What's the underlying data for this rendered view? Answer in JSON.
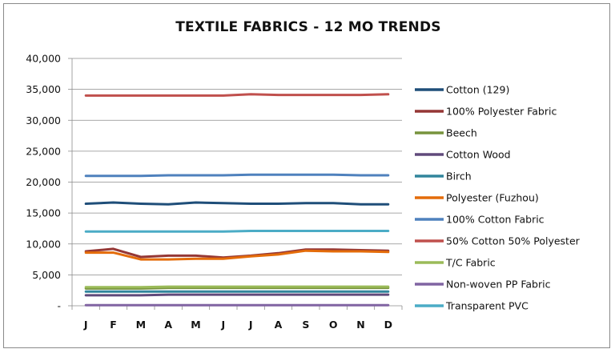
{
  "chart_data": {
    "type": "line",
    "title": "TEXTILE FABRICS - 12 MO TRENDS",
    "xlabel": "",
    "ylabel": "",
    "categories": [
      "J",
      "F",
      "M",
      "A",
      "M",
      "J",
      "J",
      "A",
      "S",
      "O",
      "N",
      "D"
    ],
    "ylim": [
      0,
      40000
    ],
    "yticks": [
      0,
      5000,
      10000,
      15000,
      20000,
      25000,
      30000,
      35000,
      40000
    ],
    "ytick_labels": [
      "-",
      "5,000",
      "10,000",
      "15,000",
      "20,000",
      "25,000",
      "30,000",
      "35,000",
      "40,000"
    ],
    "grid": true,
    "legend_position": "right",
    "series": [
      {
        "name": "Cotton (129)",
        "color": "#1f4e79",
        "values": [
          16500,
          16700,
          16500,
          16400,
          16700,
          16600,
          16500,
          16500,
          16600,
          16600,
          16400,
          16400
        ]
      },
      {
        "name": "100% Polyester Fabric",
        "color": "#953735",
        "values": [
          8800,
          9200,
          7900,
          8100,
          8100,
          7800,
          8100,
          8500,
          9100,
          9100,
          9000,
          8900
        ]
      },
      {
        "name": "Beech",
        "color": "#77933c",
        "values": [
          2800,
          2800,
          2800,
          2900,
          2900,
          2900,
          2900,
          2900,
          2900,
          2900,
          2900,
          2900
        ]
      },
      {
        "name": "Cotton Wood",
        "color": "#604a7b",
        "values": [
          1700,
          1700,
          1700,
          1800,
          1800,
          1800,
          1800,
          1800,
          1800,
          1800,
          1800,
          1800
        ]
      },
      {
        "name": "Birch",
        "color": "#31859c",
        "values": [
          2300,
          2300,
          2300,
          2300,
          2300,
          2300,
          2300,
          2300,
          2300,
          2300,
          2300,
          2300
        ]
      },
      {
        "name": "Polyester (Fuzhou)",
        "color": "#e46c0a",
        "values": [
          8600,
          8600,
          7500,
          7500,
          7600,
          7600,
          8000,
          8300,
          8900,
          8800,
          8800,
          8700
        ]
      },
      {
        "name": "100% Cotton Fabric",
        "color": "#4f81bd",
        "values": [
          21000,
          21000,
          21000,
          21100,
          21100,
          21100,
          21200,
          21200,
          21200,
          21200,
          21100,
          21100
        ]
      },
      {
        "name": "50% Cotton 50% Polyester",
        "color": "#c0504d",
        "values": [
          34000,
          34000,
          34000,
          34000,
          34000,
          34000,
          34200,
          34100,
          34100,
          34100,
          34100,
          34200
        ]
      },
      {
        "name": "T/C Fabric",
        "color": "#9bbb59",
        "values": [
          3000,
          3000,
          3000,
          3100,
          3100,
          3100,
          3100,
          3100,
          3100,
          3100,
          3100,
          3100
        ]
      },
      {
        "name": "Non-woven PP Fabric",
        "color": "#8064a2",
        "values": [
          100,
          100,
          100,
          100,
          100,
          100,
          100,
          100,
          100,
          100,
          100,
          100
        ]
      },
      {
        "name": "Transparent PVC",
        "color": "#4bacc6",
        "values": [
          12000,
          12000,
          12000,
          12000,
          12000,
          12000,
          12100,
          12100,
          12100,
          12100,
          12100,
          12100
        ]
      }
    ]
  }
}
